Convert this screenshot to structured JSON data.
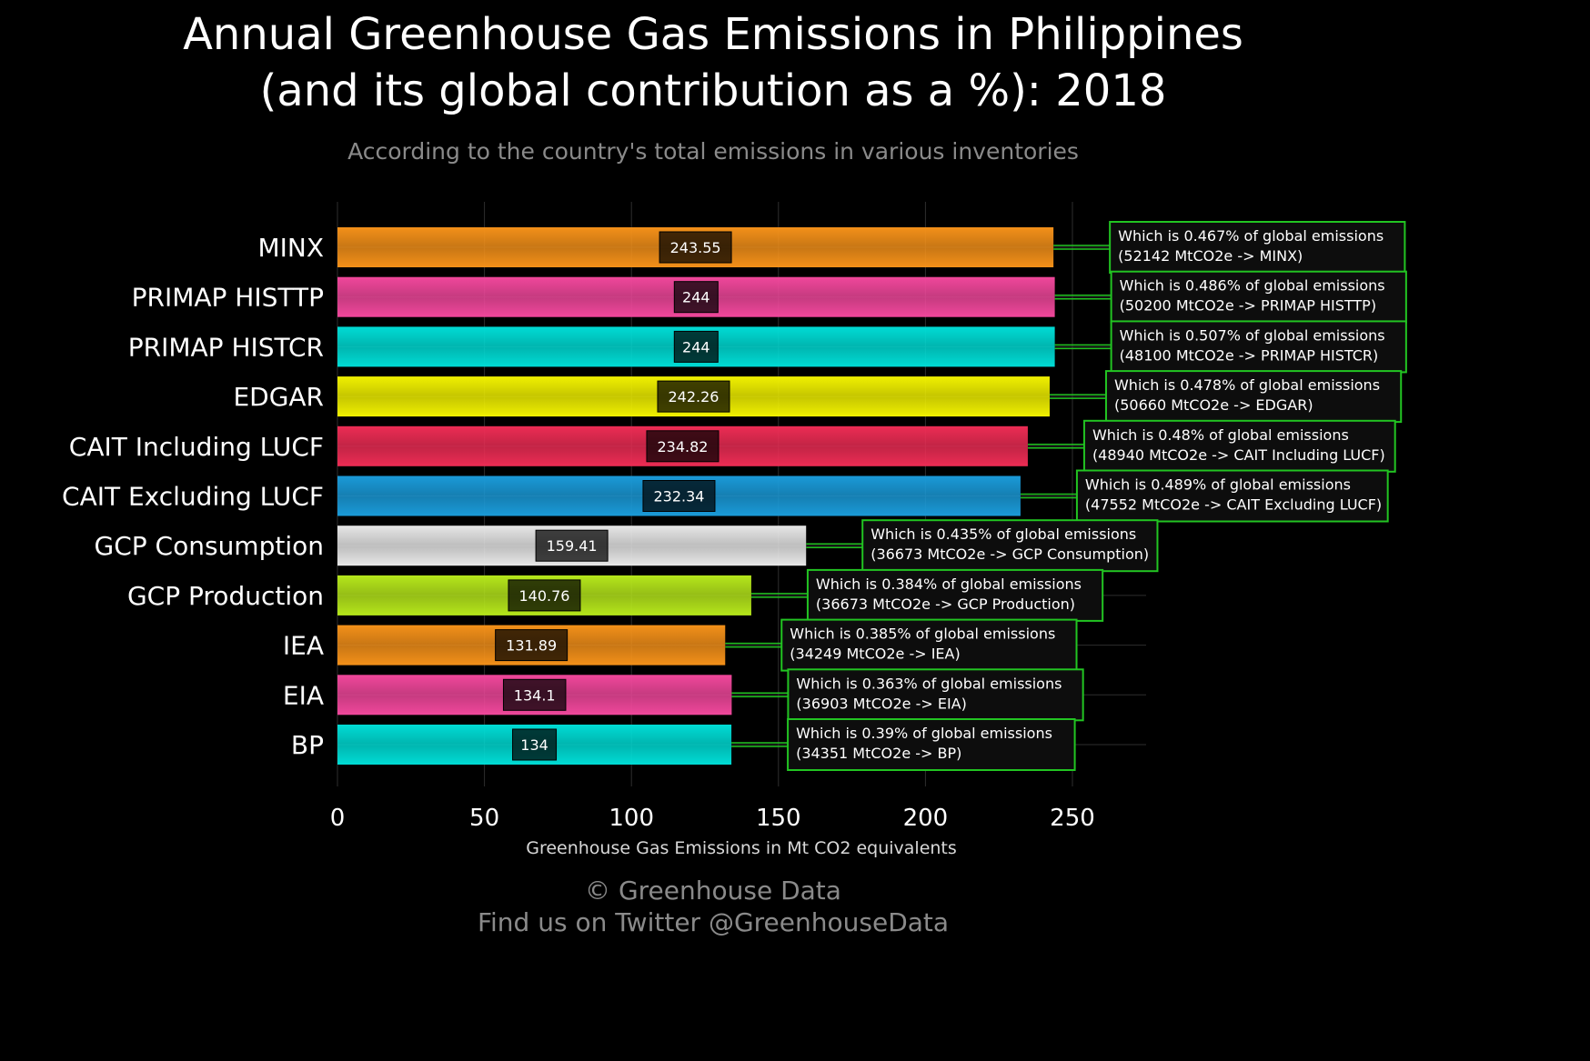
{
  "header": {
    "title_line1": "Annual Greenhouse Gas Emissions in Philippines",
    "title_line2": "(and its global contribution as a %): 2018",
    "subtitle": "According to the country's total emissions in various inventories"
  },
  "footer": {
    "line1": "© Greenhouse Data",
    "line2": "Find us on Twitter @GreenhouseData"
  },
  "chart_data": {
    "type": "bar",
    "orientation": "horizontal",
    "xlabel": "Greenhouse Gas Emissions in Mt CO2 equivalents",
    "xlim": [
      0,
      275
    ],
    "xticks": [
      0,
      50,
      100,
      150,
      200,
      250
    ],
    "grid": true,
    "categories": [
      "MINX",
      "PRIMAP HISTTP",
      "PRIMAP HISTCR",
      "EDGAR",
      "CAIT Including LUCF",
      "CAIT Excluding LUCF",
      "GCP Consumption",
      "GCP Production",
      "IEA",
      "EIA",
      "BP"
    ],
    "values": [
      243.55,
      244,
      244,
      242.26,
      234.82,
      232.34,
      159.41,
      140.76,
      131.89,
      134.1,
      134
    ],
    "value_labels": [
      "243.55",
      "244",
      "244",
      "242.26",
      "234.82",
      "232.34",
      "159.41",
      "140.76",
      "131.89",
      "134.1",
      "134"
    ],
    "colors": [
      "#f39019",
      "#f0479b",
      "#00dcd5",
      "#f0f000",
      "#ec2c54",
      "#1a9ad8",
      "#e6e6e6",
      "#b5e61b",
      "#f39019",
      "#f0479b",
      "#00dcd5"
    ],
    "annotations": [
      {
        "line1": "Which is 0.467% of global emissions",
        "line2": "(52142 MtCO2e -> MINX)"
      },
      {
        "line1": "Which is 0.486% of global emissions",
        "line2": "(50200 MtCO2e -> PRIMAP HISTTP)"
      },
      {
        "line1": "Which is 0.507% of global emissions",
        "line2": "(48100 MtCO2e -> PRIMAP HISTCR)"
      },
      {
        "line1": "Which is 0.478% of global emissions",
        "line2": "(50660 MtCO2e -> EDGAR)"
      },
      {
        "line1": "Which is 0.48% of global emissions",
        "line2": "(48940 MtCO2e -> CAIT Including LUCF)"
      },
      {
        "line1": "Which is 0.489% of global emissions",
        "line2": "(47552 MtCO2e -> CAIT Excluding LUCF)"
      },
      {
        "line1": "Which is 0.435% of global emissions",
        "line2": "(36673 MtCO2e -> GCP Consumption)"
      },
      {
        "line1": "Which is 0.384% of global emissions",
        "line2": "(36673 MtCO2e -> GCP Production)"
      },
      {
        "line1": "Which is 0.385% of global emissions",
        "line2": "(34249 MtCO2e -> IEA)"
      },
      {
        "line1": "Which is 0.363% of global emissions",
        "line2": "(36903 MtCO2e -> EIA)"
      },
      {
        "line1": "Which is 0.39% of global emissions",
        "line2": "(34351 MtCO2e -> BP)"
      }
    ],
    "annotation_border_color": "#22c422",
    "connector_color": "#22c422"
  }
}
